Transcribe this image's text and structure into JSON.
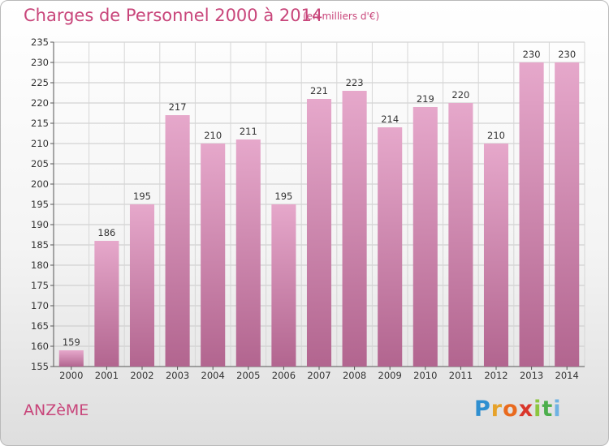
{
  "header": {
    "title": "Charges de Personnel 2000 à 2014",
    "subtitle": "(en milliers d'€)"
  },
  "footer": {
    "commune": "ANZèME",
    "logo_letters": [
      "P",
      "r",
      "o",
      "x",
      "i",
      "t",
      "i"
    ]
  },
  "colors": {
    "title": "#c8457a",
    "bar_top": "#e6a8cb",
    "bar_bottom": "#b2658f"
  },
  "chart_data": {
    "type": "bar",
    "title": "Charges de Personnel 2000 à 2014",
    "subtitle": "(en milliers d'€)",
    "categories": [
      "2000",
      "2001",
      "2002",
      "2003",
      "2004",
      "2005",
      "2006",
      "2007",
      "2008",
      "2009",
      "2010",
      "2011",
      "2012",
      "2013",
      "2014"
    ],
    "values": [
      159,
      186,
      195,
      217,
      210,
      211,
      195,
      221,
      223,
      214,
      219,
      220,
      210,
      230,
      230
    ],
    "data_labels": [
      "159",
      "186",
      "195",
      "217",
      "210",
      "211",
      "195",
      "221",
      "223",
      "214",
      "219",
      "220",
      "210",
      "230",
      "230"
    ],
    "ylim": [
      155,
      235
    ],
    "yticks": [
      155,
      160,
      165,
      170,
      175,
      180,
      185,
      190,
      195,
      200,
      205,
      210,
      215,
      220,
      225,
      230,
      235
    ],
    "grid": true,
    "xlabel": "",
    "ylabel": ""
  }
}
